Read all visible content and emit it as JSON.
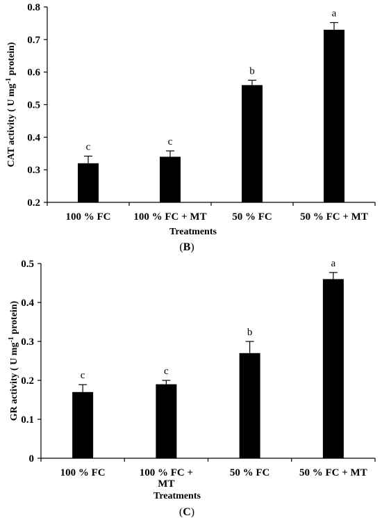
{
  "chart_data": [
    {
      "type": "bar",
      "panel": "(B)",
      "panel_letter": "B",
      "title": "",
      "ylabel": "CAT activity ( U mg⁻¹ protein)",
      "ylabel_prefix": "CAT activity ( U mg",
      "ylabel_sup": "-1",
      "ylabel_suffix": " protein)",
      "xlabel": "Treatments",
      "ylim": [
        0.2,
        0.8
      ],
      "yticks": [
        0.2,
        0.3,
        0.4,
        0.5,
        0.6,
        0.7,
        0.8
      ],
      "ytick_labels": [
        "0.2",
        "0.3",
        "0.4",
        "0.5",
        "0.6",
        "0.7",
        "0.8"
      ],
      "categories": [
        "100 % FC",
        "100 % FC + MT",
        "50 % FC",
        "50 % FC + MT"
      ],
      "category_lines": [
        [
          "100 % FC"
        ],
        [
          "100 % FC + MT"
        ],
        [
          "50 % FC"
        ],
        [
          "50 % FC + MT"
        ]
      ],
      "values": [
        0.32,
        0.34,
        0.56,
        0.73
      ],
      "errors": [
        0.022,
        0.018,
        0.015,
        0.022
      ],
      "letters": [
        "c",
        "c",
        "b",
        "a"
      ],
      "bar_color": "#000000",
      "grid": false,
      "legend": "none"
    },
    {
      "type": "bar",
      "panel": "(C)",
      "panel_letter": "C",
      "title": "",
      "ylabel": "GR activity ( U mg⁻¹ protein)",
      "ylabel_prefix": "GR activity ( U mg",
      "ylabel_sup": "-1",
      "ylabel_suffix": " protein)",
      "xlabel": "Treatments",
      "ylim": [
        0,
        0.5
      ],
      "yticks": [
        0,
        0.1,
        0.2,
        0.3,
        0.4,
        0.5
      ],
      "ytick_labels": [
        "0",
        "0.1",
        "0.2",
        "0.3",
        "0.4",
        "0.5"
      ],
      "categories": [
        "100 % FC",
        "100 % FC + MT",
        "50 % FC",
        "50 % FC + MT"
      ],
      "category_lines": [
        [
          "100 % FC"
        ],
        [
          "100 % FC +",
          "MT"
        ],
        [
          "50 % FC"
        ],
        [
          "50 % FC + MT"
        ]
      ],
      "values": [
        0.17,
        0.19,
        0.27,
        0.46
      ],
      "errors": [
        0.019,
        0.01,
        0.03,
        0.017
      ],
      "letters": [
        "c",
        "c",
        "b",
        "a"
      ],
      "bar_color": "#000000",
      "grid": false,
      "legend": "none"
    }
  ]
}
